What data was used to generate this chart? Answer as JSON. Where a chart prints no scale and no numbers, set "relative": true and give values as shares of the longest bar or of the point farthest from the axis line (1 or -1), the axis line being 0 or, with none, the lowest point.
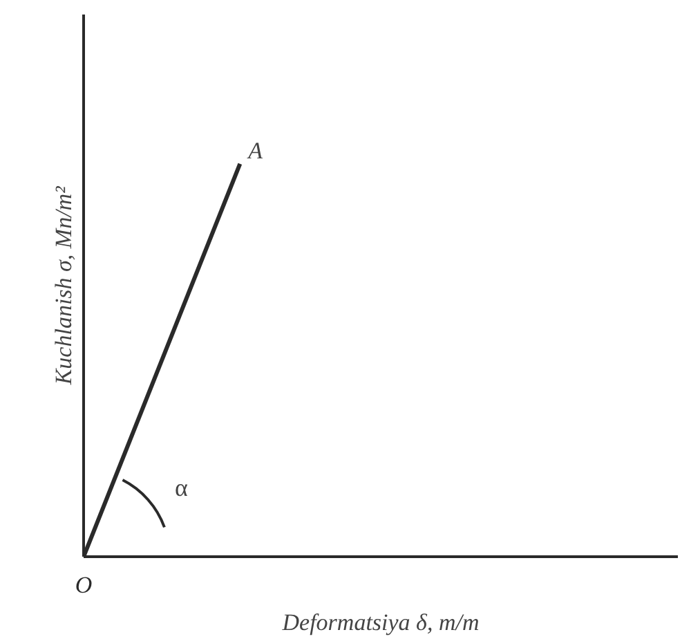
{
  "chart_data": {
    "type": "line",
    "relative": true,
    "categories": [
      null,
      null
    ],
    "values": [
      0,
      1
    ],
    "color": "#2a2a2a",
    "xlabel": "Deformatsiya δ, m/m",
    "ylabel": "Kuchlanish σ, Mn/m²",
    "annotations": [
      "A",
      "O",
      "α"
    ],
    "marker": "none",
    "line_style": "solid"
  }
}
